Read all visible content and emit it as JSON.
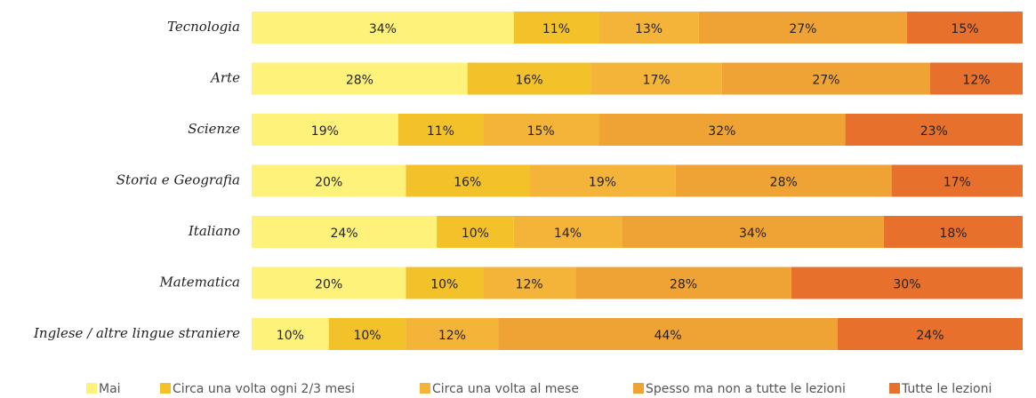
{
  "chart_data": {
    "type": "stacked-bar-horizontal",
    "categories": [
      "Tecnologia",
      "Arte",
      "Scienze",
      "Storia e Geografia",
      "Italiano",
      "Matematica",
      "Inglese / altre lingue straniere"
    ],
    "series": [
      {
        "name": "Mai",
        "color": "#fff27a",
        "values": [
          34,
          28,
          19,
          20,
          24,
          20,
          10
        ],
        "value_labels": [
          "34%",
          "28%",
          "19%",
          "20%",
          "24%",
          "20%",
          "10%"
        ]
      },
      {
        "name": "Circa una volta ogni 2/3 mesi",
        "color": "#f3c22b",
        "values": [
          11,
          16,
          11,
          16,
          10,
          10,
          10
        ],
        "value_labels": [
          "11%",
          "16%",
          "11%",
          "16%",
          "10%",
          "10%",
          "10%"
        ]
      },
      {
        "name": "Circa una volta al mese",
        "color": "#f4b43a",
        "values": [
          13,
          17,
          15,
          19,
          14,
          12,
          12
        ],
        "value_labels": [
          "13%",
          "17%",
          "15%",
          "19%",
          "14%",
          "12%",
          "12%"
        ]
      },
      {
        "name": "Spesso ma non a tutte le lezioni",
        "color": "#f0a335",
        "values": [
          27,
          27,
          32,
          28,
          34,
          28,
          44
        ],
        "value_labels": [
          "27%",
          "27%",
          "32%",
          "28%",
          "34%",
          "28%",
          "44%"
        ]
      },
      {
        "name": "Tutte le lezioni",
        "color": "#e6702c",
        "values": [
          15,
          12,
          23,
          17,
          18,
          30,
          24
        ],
        "value_labels": [
          "15%",
          "12%",
          "23%",
          "17%",
          "18%",
          "30%",
          "24%"
        ]
      }
    ]
  }
}
